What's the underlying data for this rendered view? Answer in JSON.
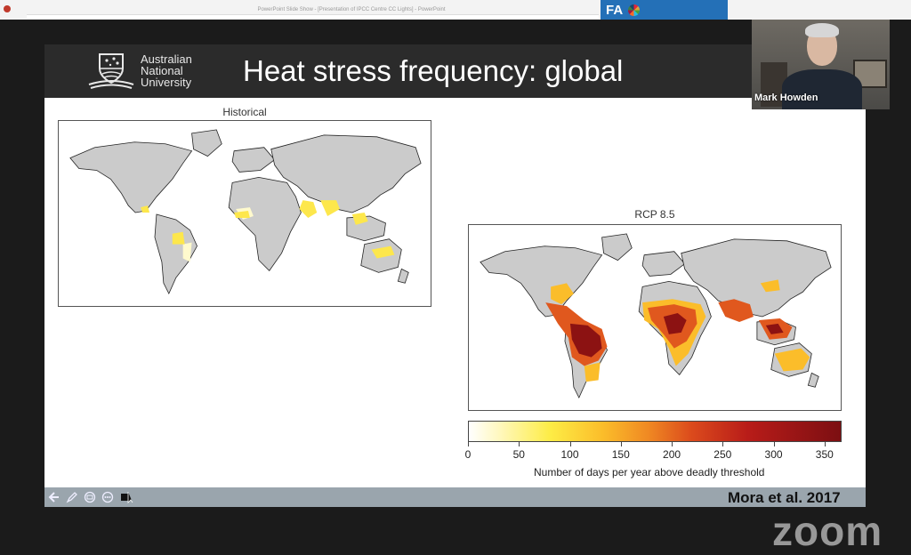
{
  "window": {
    "title_bar": "PowerPoint Slide Show - [Presentation of IPCC Centre CC Lights] - PowerPoint",
    "fao_logo": "FA"
  },
  "slide": {
    "header": {
      "logo_lines": [
        "Australian",
        "National",
        "University"
      ],
      "title": "Heat stress frequency: global"
    },
    "panels": {
      "historical": {
        "title": "Historical"
      },
      "rcp": {
        "title": "RCP 8.5"
      }
    },
    "colorbar": {
      "ticks": [
        "0",
        "50",
        "100",
        "150",
        "200",
        "250",
        "300",
        "350"
      ],
      "label": "Number of days per year above deadly threshold",
      "range": [
        0,
        365
      ],
      "colors": [
        "#ffffff",
        "#fdec45",
        "#f08a23",
        "#db4a1c",
        "#7c0f12"
      ]
    },
    "citation": "Mora et al. 2017"
  },
  "controls": {
    "icons": [
      "back-arrow-icon",
      "pen-icon",
      "slides-icon",
      "more-icon",
      "pointer-icon"
    ]
  },
  "video": {
    "participant_name": "Mark Howden",
    "watermark": "zoom"
  }
}
